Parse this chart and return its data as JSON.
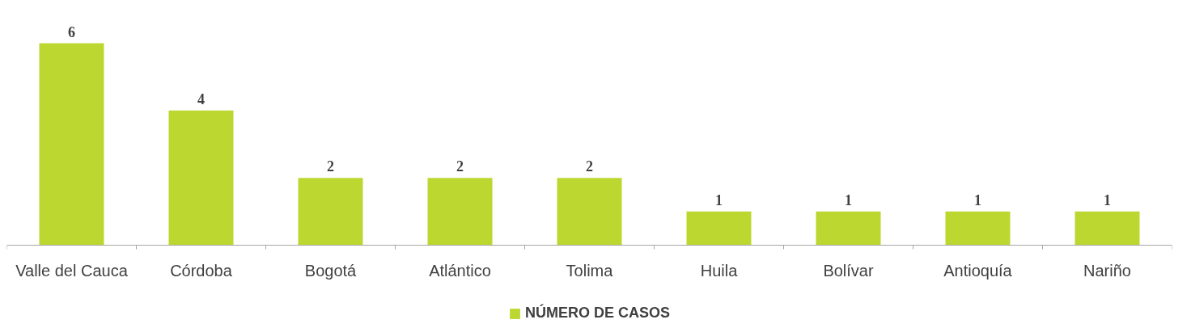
{
  "chart_data": {
    "type": "bar",
    "categories": [
      "Valle del Cauca",
      "Córdoba",
      "Bogotá",
      "Atlántico",
      "Tolima",
      "Huila",
      "Bolívar",
      "Antioquía",
      "Nariño"
    ],
    "series": [
      {
        "name": "NÚMERO DE CASOS",
        "color": "#bdd731",
        "values": [
          6,
          4,
          2,
          2,
          2,
          1,
          1,
          1,
          1
        ]
      }
    ],
    "data_labels": true,
    "legend": "bottom",
    "grid": false
  }
}
